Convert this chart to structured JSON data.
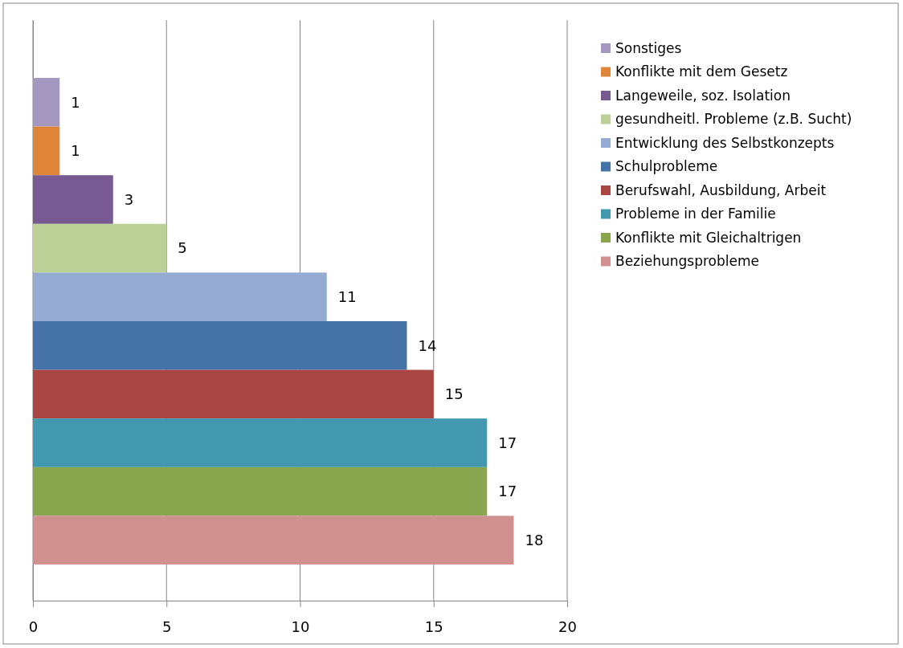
{
  "chart_data": {
    "type": "bar",
    "orientation": "horizontal",
    "categories": [
      null,
      null,
      null,
      null,
      null,
      null,
      null,
      null,
      null,
      null
    ],
    "stacked": true,
    "xlim": [
      0,
      20
    ],
    "xticks": [
      0,
      5,
      10,
      15,
      20
    ],
    "grid": "x",
    "legend": "right",
    "data_labels": true,
    "series": [
      {
        "name": "Sonstiges",
        "color": "#a598c0",
        "values": [
          1,
          null,
          null,
          null,
          null,
          null,
          null,
          null,
          null,
          null
        ]
      },
      {
        "name": "Konflikte mit dem Gesetz",
        "color": "#e0863a",
        "values": [
          null,
          1,
          null,
          null,
          null,
          null,
          null,
          null,
          null,
          null
        ]
      },
      {
        "name": "Langeweile, soz. Isolation",
        "color": "#775a92",
        "values": [
          null,
          null,
          3,
          null,
          null,
          null,
          null,
          null,
          null,
          null
        ]
      },
      {
        "name": "gesundheitl. Probleme (z.B. Sucht)",
        "color": "#bbd097",
        "values": [
          null,
          null,
          null,
          5,
          null,
          null,
          null,
          null,
          null,
          null
        ]
      },
      {
        "name": "Entwicklung des Selbstkonzepts",
        "color": "#95abd2",
        "values": [
          null,
          null,
          null,
          null,
          11,
          null,
          null,
          null,
          null,
          null
        ]
      },
      {
        "name": "Schulprobleme",
        "color": "#4572a7",
        "values": [
          null,
          null,
          null,
          null,
          null,
          14,
          null,
          null,
          null,
          null
        ]
      },
      {
        "name": "Berufswahl, Ausbildung, Arbeit",
        "color": "#a94643",
        "values": [
          null,
          null,
          null,
          null,
          null,
          null,
          15,
          null,
          null,
          null
        ]
      },
      {
        "name": "Probleme in der Familie",
        "color": "#4198af",
        "values": [
          null,
          null,
          null,
          null,
          null,
          null,
          null,
          17,
          null,
          null
        ]
      },
      {
        "name": "Konflikte mit Gleichaltrigen",
        "color": "#89a54e",
        "values": [
          null,
          null,
          null,
          null,
          null,
          null,
          null,
          null,
          17,
          null
        ]
      },
      {
        "name": "Beziehungsprobleme",
        "color": "#d09090",
        "values": [
          null,
          null,
          null,
          null,
          null,
          null,
          null,
          null,
          null,
          18
        ]
      }
    ]
  }
}
